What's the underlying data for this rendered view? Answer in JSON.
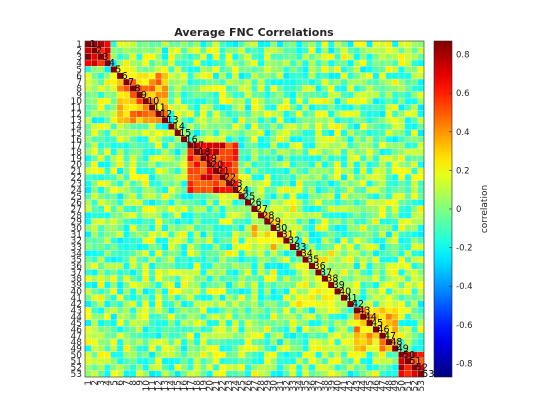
{
  "chart_data": {
    "type": "heatmap",
    "title": "Average FNC Correlations",
    "n": 53,
    "row_labels": [
      "1",
      "2",
      "3",
      "4",
      "5",
      "6",
      "7",
      "8",
      "9",
      "10",
      "11",
      "12",
      "13",
      "14",
      "15",
      "16",
      "17",
      "18",
      "19",
      "20",
      "21",
      "22",
      "23",
      "24",
      "25",
      "26",
      "27",
      "28",
      "29",
      "30",
      "31",
      "32",
      "33",
      "34",
      "35",
      "36",
      "37",
      "38",
      "39",
      "40",
      "41",
      "42",
      "43",
      "44",
      "45",
      "46",
      "47",
      "48",
      "49",
      "50",
      "51",
      "52",
      "53"
    ],
    "col_labels": [
      "1",
      "2",
      "3",
      "4",
      "5",
      "6",
      "7",
      "8",
      "9",
      "10",
      "11",
      "12",
      "13",
      "14",
      "15",
      "16",
      "17",
      "18",
      "19",
      "20",
      "21",
      "22",
      "23",
      "24",
      "25",
      "26",
      "27",
      "28",
      "29",
      "30",
      "31",
      "32",
      "33",
      "34",
      "35",
      "36",
      "37",
      "38",
      "39",
      "40",
      "41",
      "42",
      "43",
      "44",
      "45",
      "46",
      "47",
      "48",
      "49",
      "50",
      "51",
      "52",
      "53"
    ],
    "diagonal_labels": [
      "1",
      "2",
      "3",
      "4",
      "5",
      "6",
      "7",
      "8",
      "9",
      "10",
      "11",
      "12",
      "13",
      "14",
      "15",
      "16",
      "17",
      "18",
      "19",
      "20",
      "21",
      "22",
      "23",
      "24",
      "25",
      "26",
      "27",
      "28",
      "29",
      "30",
      "31",
      "32",
      "33",
      "34",
      "35",
      "36",
      "37",
      "38",
      "39",
      "40",
      "41",
      "42",
      "43",
      "44",
      "45",
      "46",
      "47",
      "48",
      "49",
      "50",
      "51",
      "52",
      "53"
    ],
    "blocks": [
      {
        "start": 1,
        "end": 4,
        "value": 0.72
      },
      {
        "start": 6,
        "end": 13,
        "value": 0.38
      },
      {
        "start": 17,
        "end": 24,
        "value": 0.6
      },
      {
        "start": 27,
        "end": 33,
        "value": 0.22
      },
      {
        "start": 34,
        "end": 42,
        "value": 0.12
      },
      {
        "start": 43,
        "end": 49,
        "value": 0.32
      },
      {
        "start": 50,
        "end": 53,
        "value": 0.65
      }
    ],
    "colorbar": {
      "label": "correlation",
      "clim": [
        -0.87,
        0.87
      ],
      "ticks": [
        -0.8,
        -0.6,
        -0.4,
        -0.2,
        0,
        0.2,
        0.4,
        0.6,
        0.8
      ],
      "tick_labels": [
        "-0.8",
        "-0.6",
        "-0.4",
        "-0.2",
        "0",
        "0.2",
        "0.4",
        "0.6",
        "0.8"
      ],
      "colormap": "jet",
      "colormap_stops": [
        "#00008f",
        "#0000ff",
        "#00ffff",
        "#ffff00",
        "#ff0000",
        "#800000"
      ]
    }
  }
}
